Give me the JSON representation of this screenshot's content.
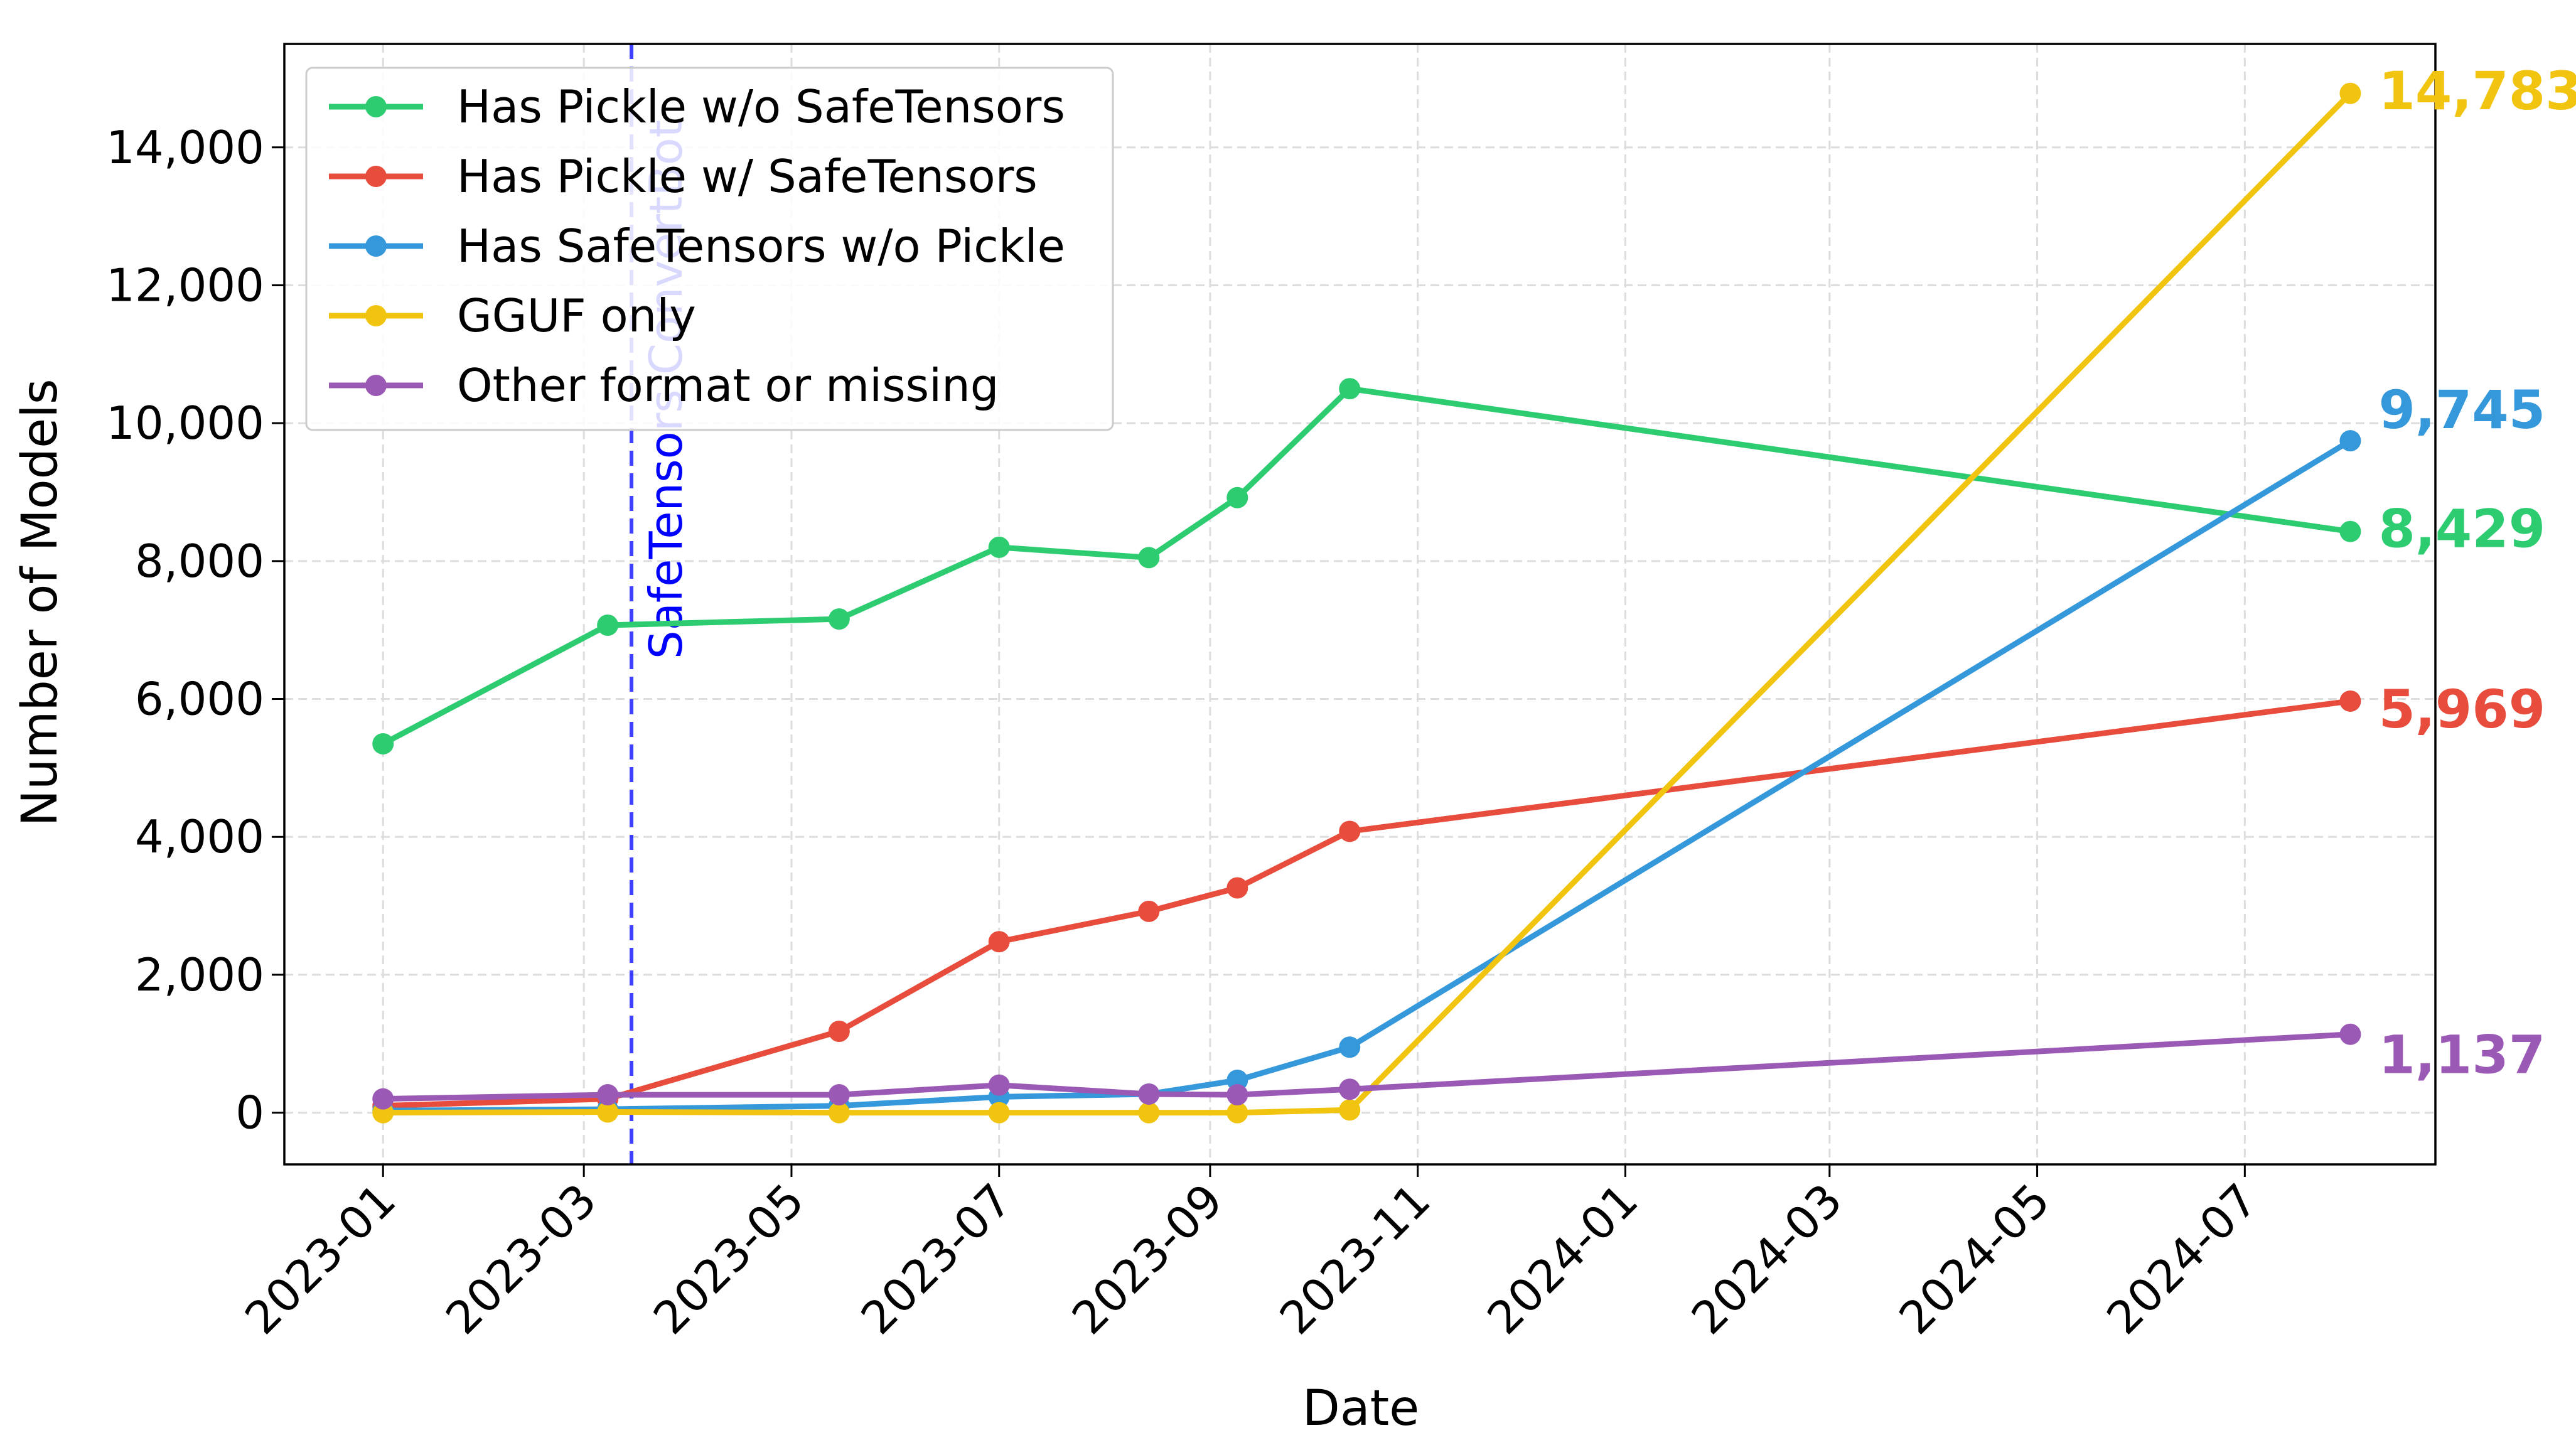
{
  "chart_data": {
    "type": "line",
    "title": "",
    "xlabel": "Date",
    "ylabel": "Number of Models",
    "x_axis_type": "date",
    "x_tick_labels": [
      "2023-01",
      "2023-03",
      "2023-05",
      "2023-07",
      "2023-09",
      "2023-11",
      "2024-01",
      "2024-03",
      "2024-05",
      "2024-07"
    ],
    "xlim": [
      "2022-12-03",
      "2024-08-26"
    ],
    "ylim": [
      -750,
      15500
    ],
    "y_ticks": [
      0,
      2000,
      4000,
      6000,
      8000,
      10000,
      12000,
      14000
    ],
    "y_tick_labels": [
      "0",
      "2,000",
      "4,000",
      "6,000",
      "8,000",
      "10,000",
      "12,000",
      "14,000"
    ],
    "grid": true,
    "legend_position": "top-left",
    "x": [
      "2023-01-01",
      "2023-03-08",
      "2023-05-15",
      "2023-07-01",
      "2023-08-14",
      "2023-09-09",
      "2023-10-12",
      "2024-08-01"
    ],
    "series": [
      {
        "name": "Has Pickle w/o SafeTensors",
        "color": "#2ecc71",
        "values": [
          5350,
          7070,
          7160,
          8200,
          8050,
          8920,
          10500,
          8429
        ],
        "end_label": "8,429"
      },
      {
        "name": "Has Pickle w/ SafeTensors",
        "color": "#e74c3c",
        "values": [
          100,
          200,
          1180,
          2480,
          2920,
          3260,
          4080,
          5969
        ],
        "end_label": "5,969"
      },
      {
        "name": "Has SafeTensors w/o Pickle",
        "color": "#3498db",
        "values": [
          30,
          50,
          100,
          230,
          270,
          470,
          950,
          9745
        ],
        "end_label": "9,745"
      },
      {
        "name": "GGUF only",
        "color": "#f1c40f",
        "values": [
          0,
          10,
          0,
          0,
          0,
          0,
          40,
          14783
        ],
        "end_label": "14,783"
      },
      {
        "name": "Other format or missing",
        "color": "#9b59b6",
        "values": [
          200,
          260,
          260,
          400,
          270,
          260,
          340,
          1137
        ],
        "end_label": "1,137"
      }
    ],
    "annotations": [
      {
        "type": "vertical-line",
        "x": "2023-03-15",
        "label": "SafeTensors ConvertBot",
        "color": "#0000ff",
        "style": "dashed"
      }
    ]
  }
}
